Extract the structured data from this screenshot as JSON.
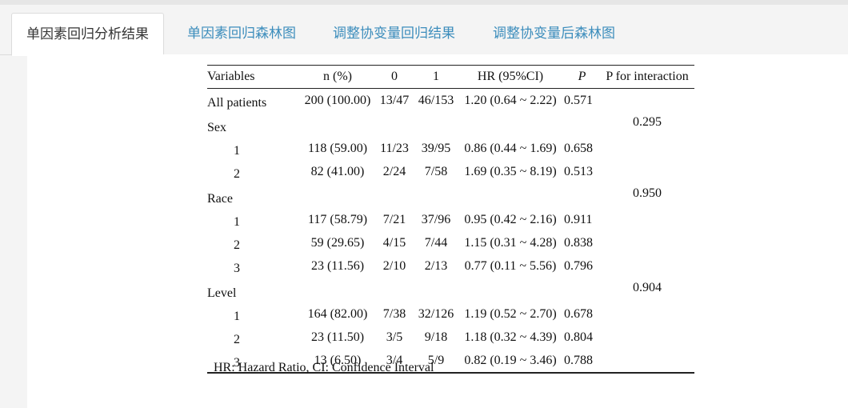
{
  "tabs": [
    {
      "label": "单因素回归分析结果",
      "active": true
    },
    {
      "label": "单因素回归森林图",
      "active": false
    },
    {
      "label": "调整协变量回归结果",
      "active": false
    },
    {
      "label": "调整协变量后森林图",
      "active": false
    }
  ],
  "colors": {
    "tab_text": "#3c8dbc",
    "active_tab_text": "#333333"
  },
  "table": {
    "headers": {
      "variables": "Variables",
      "n": "n (%)",
      "zero": "0",
      "one": "1",
      "hr": "HR (95%CI)",
      "p": "P",
      "p_interaction": "P for interaction"
    },
    "rows": [
      {
        "variable": "All patients",
        "n": "200 (100.00)",
        "zero": "13/47",
        "one": "46/153",
        "hr": "1.20 (0.64 ~ 2.22)",
        "p": "0.571",
        "pi": ""
      },
      {
        "variable": "Sex",
        "n": "",
        "zero": "",
        "one": "",
        "hr": "",
        "p": "",
        "pi": "0.295"
      },
      {
        "variable": "1",
        "n": "118 (59.00)",
        "zero": "11/23",
        "one": "39/95",
        "hr": "0.86 (0.44 ~ 1.69)",
        "p": "0.658",
        "pi": ""
      },
      {
        "variable": "2",
        "n": "82 (41.00)",
        "zero": "2/24",
        "one": "7/58",
        "hr": "1.69 (0.35 ~ 8.19)",
        "p": "0.513",
        "pi": ""
      },
      {
        "variable": "Race",
        "n": "",
        "zero": "",
        "one": "",
        "hr": "",
        "p": "",
        "pi": "0.950"
      },
      {
        "variable": "1",
        "n": "117 (58.79)",
        "zero": "7/21",
        "one": "37/96",
        "hr": "0.95 (0.42 ~ 2.16)",
        "p": "0.911",
        "pi": ""
      },
      {
        "variable": "2",
        "n": "59 (29.65)",
        "zero": "4/15",
        "one": "7/44",
        "hr": "1.15 (0.31 ~ 4.28)",
        "p": "0.838",
        "pi": ""
      },
      {
        "variable": "3",
        "n": "23 (11.56)",
        "zero": "2/10",
        "one": "2/13",
        "hr": "0.77 (0.11 ~ 5.56)",
        "p": "0.796",
        "pi": ""
      },
      {
        "variable": "Level",
        "n": "",
        "zero": "",
        "one": "",
        "hr": "",
        "p": "",
        "pi": "0.904"
      },
      {
        "variable": "1",
        "n": "164 (82.00)",
        "zero": "7/38",
        "one": "32/126",
        "hr": "1.19 (0.52 ~ 2.70)",
        "p": "0.678",
        "pi": ""
      },
      {
        "variable": "2",
        "n": "23 (11.50)",
        "zero": "3/5",
        "one": "9/18",
        "hr": "1.18 (0.32 ~ 4.39)",
        "p": "0.804",
        "pi": ""
      },
      {
        "variable": "3",
        "n": "13 (6.50)",
        "zero": "3/4",
        "one": "5/9",
        "hr": "0.82 (0.19 ~ 3.46)",
        "p": "0.788",
        "pi": ""
      }
    ],
    "footnote": "HR: Hazard Ratio, CI: Confidence Interval"
  }
}
